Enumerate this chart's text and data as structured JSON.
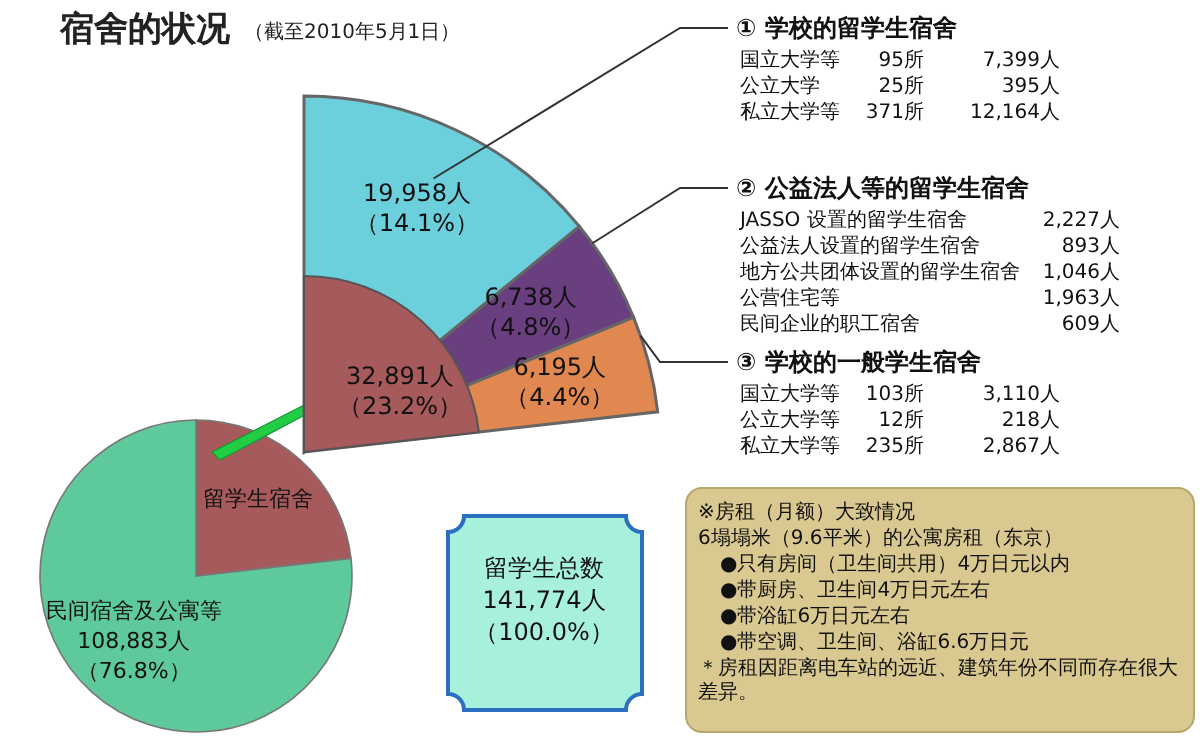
{
  "chart_data": [
    {
      "type": "pie",
      "title": "宿舍的状况",
      "subtitle": "（截至2010年5月1日）",
      "categories": [
        "留学生宿舍",
        "民间宿舍及公寓等"
      ],
      "values": [
        32891,
        108883
      ],
      "colors": [
        "#a65a5c",
        "#5ec99a"
      ],
      "value_labels": [
        null,
        "108,883人（76.8%）"
      ],
      "annotations": [
        "留学生总数141,774人（100.0%）",
        "※房租（月额）大致情况",
        "6塌塌米（9.6平米）的公寓房租（东京）",
        "●只有房间（卫生间共用）4万日元以内",
        "●带厨房、卫生间4万日元左右",
        "●带浴缸6万日元左右",
        "●带空调、卫生间、浴缸6.6万日元",
        "＊房租因距离电车站的远近、建筑年份不同而存在很大差异。"
      ]
    },
    {
      "type": "pie",
      "categories": [
        "① 学校的留学生宿舍",
        "② 公益法人等的留学生宿舍",
        "③ 学校的一般学生宿舍"
      ],
      "values": [
        19958,
        6738,
        6195
      ],
      "colors": [
        "#6cd0dc",
        "#6a3f80",
        "#e08850"
      ],
      "value_labels": [
        "19,958人（14.1%）",
        "6,738人（4.8%）",
        "6,195人（4.4%）"
      ],
      "annotations": [
        "32,891人（23.2%）",
        "国立大学等\t95所\t7,399人",
        "公立大学\t25所\t395人",
        "私立大学等\t371所\t12,164人",
        "JASSO 设置的留学生宿舍\t\t2,227人",
        "公益法人设置的留学生宿舍\t\t893人",
        "地方公共团体设置的留学生宿舍\t\t1,046人",
        "公营住宅等\t\t1,963人",
        "民间企业的职工宿舍\t\t609人",
        "国立大学等\t103所\t3,110人",
        "公立大学等\t12所\t218人",
        "私立大学等\t235所\t2,867人"
      ]
    }
  ]
}
